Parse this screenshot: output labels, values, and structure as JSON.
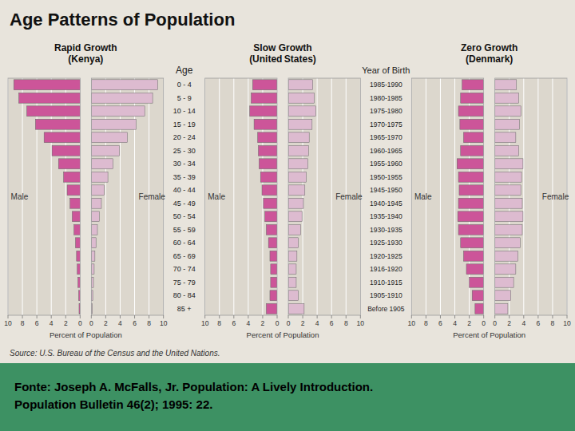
{
  "chart_data": {
    "type": "pyramid",
    "title": "Age Patterns of Population",
    "annotations": [
      "Source: U.S. Bureau of the Census and the United Nations.",
      "Fonte: Joseph A. McFalls, Jr. Population: A Lively Introduction.\nPopulation Bulletin 46(2); 1995: 22."
    ],
    "y_label": "Age",
    "categories": [
      "85 +",
      "80 - 84",
      "75 - 79",
      "70 - 74",
      "65 - 69",
      "60 - 64",
      "55 - 59",
      "50 - 54",
      "45 - 49",
      "40 - 44",
      "35 - 39",
      "30 - 34",
      "25 - 30",
      "20 - 24",
      "15 - 19",
      "10 - 14",
      "5 - 9",
      "0 - 4"
    ],
    "y2_label": "Year of Birth",
    "y2_categories": [
      "Before 1905",
      "1905-1910",
      "1910-1915",
      "1916-1920",
      "1920-1925",
      "1925-1930",
      "1930-1935",
      "1935-1940",
      "1940-1945",
      "1945-1950",
      "1950-1955",
      "1955-1960",
      "1960-1965",
      "1965-1970",
      "1970-1975",
      "1975-1980",
      "1980-1985",
      "1985-1990"
    ],
    "x_label": "Percent of Population",
    "panels": [
      {
        "title": "Rapid Growth\n(Kenya)",
        "orientation": "horizontal",
        "grid": true,
        "xlim": [
          0,
          10
        ],
        "xticks": [
          0,
          2,
          4,
          6,
          8,
          10
        ],
        "series": [
          {
            "name": "Male",
            "color": "#cc5599",
            "values": [
              0.15,
              0.2,
              0.3,
              0.4,
              0.5,
              0.65,
              0.85,
              1.1,
              1.4,
              1.8,
              2.3,
              3.0,
              3.9,
              5.0,
              6.2,
              7.4,
              8.5,
              9.2
            ]
          },
          {
            "name": "Female",
            "color": "#ddbbd0",
            "values": [
              0.15,
              0.2,
              0.3,
              0.4,
              0.5,
              0.65,
              0.85,
              1.1,
              1.4,
              1.8,
              2.3,
              3.0,
              3.9,
              5.0,
              6.2,
              7.4,
              8.5,
              9.2
            ]
          }
        ]
      },
      {
        "title": "Slow Growth\n(United States)",
        "orientation": "horizontal",
        "grid": true,
        "xlim": [
          0,
          10
        ],
        "xticks": [
          0,
          2,
          4,
          6,
          8,
          10
        ],
        "series": [
          {
            "name": "Male",
            "color": "#cc5599",
            "values": [
              1.5,
              1.0,
              0.9,
              0.9,
              1.0,
              1.2,
              1.5,
              1.7,
              1.9,
              2.1,
              2.3,
              2.5,
              2.6,
              2.7,
              3.2,
              3.8,
              3.6,
              3.4
            ]
          },
          {
            "name": "Female",
            "color": "#ddbbd0",
            "values": [
              2.2,
              1.4,
              1.1,
              1.1,
              1.2,
              1.4,
              1.7,
              1.9,
              2.1,
              2.3,
              2.5,
              2.7,
              2.8,
              2.9,
              3.3,
              3.8,
              3.6,
              3.4
            ]
          }
        ]
      },
      {
        "title": "Zero Growth\n(Denmark)",
        "orientation": "horizontal",
        "grid": true,
        "xlim": [
          0,
          10
        ],
        "xticks": [
          0,
          2,
          4,
          6,
          8,
          10
        ],
        "series": [
          {
            "name": "Male",
            "color": "#cc5599",
            "values": [
              1.2,
              1.6,
              2.0,
              2.4,
              2.8,
              3.2,
              3.5,
              3.6,
              3.5,
              3.4,
              3.5,
              3.7,
              3.2,
              2.8,
              3.3,
              3.5,
              3.2,
              3.0
            ]
          },
          {
            "name": "Female",
            "color": "#ddbbd0",
            "values": [
              1.8,
              2.2,
              2.6,
              2.9,
              3.2,
              3.5,
              3.8,
              3.9,
              3.8,
              3.6,
              3.7,
              3.9,
              3.3,
              2.9,
              3.4,
              3.6,
              3.3,
              3.0
            ]
          }
        ]
      }
    ]
  }
}
